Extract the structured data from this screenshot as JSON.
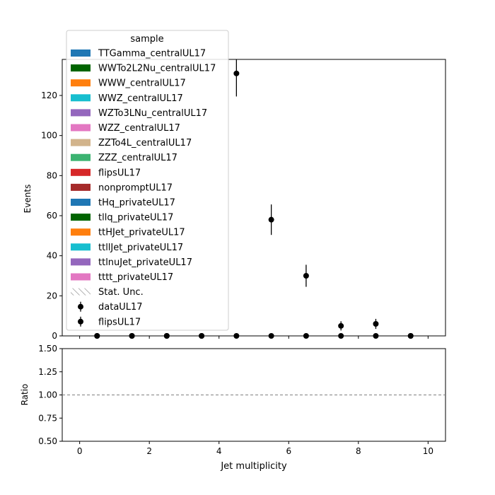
{
  "chart_data": {
    "type": "scatter",
    "xlabel": "Jet multiplicity",
    "xlim": [
      -0.5,
      10.5
    ],
    "x_ticks": [
      "0",
      "2",
      "4",
      "6",
      "8",
      "10"
    ],
    "x_tick_values": [
      0,
      2,
      4,
      6,
      8,
      10
    ],
    "top_panel": {
      "ylabel": "Events",
      "ylim": [
        0,
        138
      ],
      "y_ticks": [
        "0",
        "20",
        "40",
        "60",
        "80",
        "100",
        "120"
      ],
      "y_tick_values": [
        0,
        20,
        40,
        60,
        80,
        100,
        120
      ],
      "series": [
        {
          "name": "dataUL17",
          "color": "#000000",
          "x": [
            0.5,
            1.5,
            2.5,
            3.5,
            4.5,
            5.5,
            6.5,
            7.5,
            8.5,
            9.5
          ],
          "values": [
            0,
            0,
            0,
            0,
            131,
            58,
            30,
            5,
            6,
            0
          ],
          "errors": [
            0,
            0,
            0,
            0,
            11.5,
            7.6,
            5.5,
            2.3,
            2.5,
            0
          ]
        },
        {
          "name": "flipsUL17",
          "color": "#000000",
          "x": [
            0.5,
            1.5,
            2.5,
            3.5,
            4.5,
            5.5,
            6.5,
            7.5,
            8.5,
            9.5
          ],
          "values": [
            0,
            0,
            0,
            0,
            0,
            0,
            0,
            0,
            0,
            0
          ],
          "errors": [
            0,
            0,
            0,
            0,
            0,
            0,
            0,
            0,
            0,
            0
          ]
        }
      ]
    },
    "ratio_panel": {
      "ylabel": "Ratio",
      "ylim": [
        0.5,
        1.5
      ],
      "y_ticks": [
        "0.50",
        "0.75",
        "1.00",
        "1.25",
        "1.50"
      ],
      "y_tick_values": [
        0.5,
        0.75,
        1.0,
        1.25,
        1.5
      ],
      "reference_line": 1.0,
      "reference_line_color": "#808080"
    },
    "legend": {
      "title": "sample",
      "placement": "upper-left",
      "entries": [
        {
          "label": "TTGamma_centralUL17",
          "kind": "patch",
          "color": "#1f77b4"
        },
        {
          "label": "WWTo2L2Nu_centralUL17",
          "kind": "patch",
          "color": "#006400"
        },
        {
          "label": "WWW_centralUL17",
          "kind": "patch",
          "color": "#ff7f0e"
        },
        {
          "label": "WWZ_centralUL17",
          "kind": "patch",
          "color": "#17becf"
        },
        {
          "label": "WZTo3LNu_centralUL17",
          "kind": "patch",
          "color": "#9467bd"
        },
        {
          "label": "WZZ_centralUL17",
          "kind": "patch",
          "color": "#e377c2"
        },
        {
          "label": "ZZTo4L_centralUL17",
          "kind": "patch",
          "color": "#d2b48c"
        },
        {
          "label": "ZZZ_centralUL17",
          "kind": "patch",
          "color": "#3cb371"
        },
        {
          "label": "flipsUL17",
          "kind": "patch",
          "color": "#d62728"
        },
        {
          "label": "nonpromptUL17",
          "kind": "patch",
          "color": "#a52a2a"
        },
        {
          "label": "tHq_privateUL17",
          "kind": "patch",
          "color": "#1f77b4"
        },
        {
          "label": "tllq_privateUL17",
          "kind": "patch",
          "color": "#006400"
        },
        {
          "label": "ttHJet_privateUL17",
          "kind": "patch",
          "color": "#ff7f0e"
        },
        {
          "label": "ttllJet_privateUL17",
          "kind": "patch",
          "color": "#17becf"
        },
        {
          "label": "ttlnuJet_privateUL17",
          "kind": "patch",
          "color": "#9467bd"
        },
        {
          "label": "tttt_privateUL17",
          "kind": "patch",
          "color": "#e377c2"
        },
        {
          "label": "Stat. Unc.",
          "kind": "hatch",
          "color": "#808080"
        },
        {
          "label": "dataUL17",
          "kind": "errorbar",
          "color": "#000000"
        },
        {
          "label": "flipsUL17",
          "kind": "errorbar",
          "color": "#000000"
        }
      ]
    },
    "grid": false
  }
}
